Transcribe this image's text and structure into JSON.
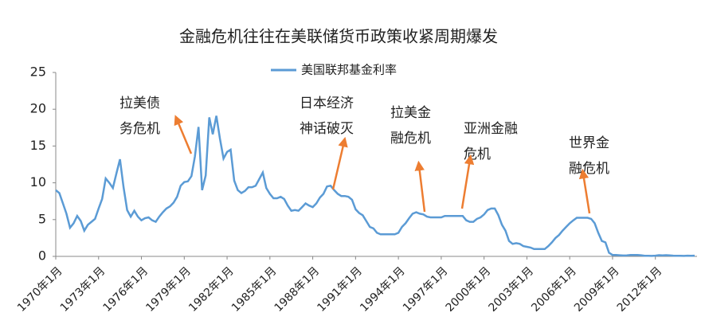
{
  "chart_data": {
    "type": "line",
    "title": "金融危机往往在美联储货币政策收紧周期爆发",
    "categories": [
      "1970年1月",
      null,
      null,
      null,
      null,
      null,
      null,
      null,
      null,
      null,
      null,
      null,
      "1973年1月",
      null,
      null,
      null,
      null,
      null,
      null,
      null,
      null,
      null,
      null,
      null,
      "1976年1月",
      null,
      null,
      null,
      null,
      null,
      null,
      null,
      null,
      null,
      null,
      null,
      "1979年1月",
      null,
      null,
      null,
      null,
      null,
      null,
      null,
      null,
      null,
      null,
      null,
      "1982年1月",
      null,
      null,
      null,
      null,
      null,
      null,
      null,
      null,
      null,
      null,
      null,
      "1985年1月",
      null,
      null,
      null,
      null,
      null,
      null,
      null,
      null,
      null,
      null,
      null,
      "1988年1月",
      null,
      null,
      null,
      null,
      null,
      null,
      null,
      null,
      null,
      null,
      null,
      "1991年1月",
      null,
      null,
      null,
      null,
      null,
      null,
      null,
      null,
      null,
      null,
      null,
      "1994年1月",
      null,
      null,
      null,
      null,
      null,
      null,
      null,
      null,
      null,
      null,
      null,
      "1997年1月",
      null,
      null,
      null,
      null,
      null,
      null,
      null,
      null,
      null,
      null,
      null,
      "2000年1月",
      null,
      null,
      null,
      null,
      null,
      null,
      null,
      null,
      null,
      null,
      null,
      "2003年1月",
      null,
      null,
      null,
      null,
      null,
      null,
      null,
      null,
      null,
      null,
      null,
      "2006年1月",
      null,
      null,
      null,
      null,
      null,
      null,
      null,
      null,
      null,
      null,
      null,
      "2009年1月",
      null,
      null,
      null,
      null,
      null,
      null,
      null,
      null,
      null,
      null,
      null,
      "2012年1月",
      null,
      null,
      null,
      null,
      null,
      null,
      null,
      null,
      null,
      null,
      null
    ],
    "series": [
      {
        "name": "美国联邦基金利率",
        "color": "#5b9bd5",
        "values": [
          9.0,
          8.6,
          7.2,
          5.8,
          3.9,
          4.5,
          5.5,
          4.8,
          3.5,
          4.3,
          4.7,
          5.1,
          6.5,
          7.8,
          10.6,
          10.0,
          9.3,
          11.3,
          13.2,
          9.4,
          6.3,
          5.4,
          6.2,
          5.4,
          4.9,
          5.2,
          5.3,
          4.9,
          4.7,
          5.4,
          6.0,
          6.5,
          6.8,
          7.3,
          8.1,
          9.6,
          10.1,
          10.2,
          10.9,
          13.6,
          17.6,
          9.0,
          11.0,
          18.9,
          16.6,
          19.1,
          16.0,
          13.3,
          14.2,
          14.5,
          10.3,
          9.0,
          8.6,
          8.9,
          9.4,
          9.4,
          9.6,
          10.5,
          11.4,
          9.3,
          8.5,
          7.9,
          7.9,
          8.1,
          7.8,
          6.9,
          6.2,
          6.3,
          6.2,
          6.7,
          7.2,
          6.9,
          6.7,
          7.2,
          8.0,
          8.5,
          9.5,
          9.6,
          9.0,
          8.5,
          8.2,
          8.2,
          8.1,
          7.7,
          6.4,
          5.9,
          5.6,
          4.8,
          4.0,
          3.8,
          3.2,
          3.0,
          3.0,
          3.0,
          3.0,
          3.0,
          3.2,
          4.0,
          4.5,
          5.2,
          5.8,
          6.0,
          5.8,
          5.7,
          5.4,
          5.3,
          5.3,
          5.3,
          5.3,
          5.5,
          5.5,
          5.5,
          5.5,
          5.5,
          5.5,
          4.9,
          4.7,
          4.7,
          5.1,
          5.3,
          5.7,
          6.3,
          6.5,
          6.5,
          5.6,
          4.3,
          3.5,
          2.1,
          1.7,
          1.8,
          1.7,
          1.4,
          1.3,
          1.2,
          1.0,
          1.0,
          1.0,
          1.0,
          1.4,
          1.9,
          2.5,
          2.9,
          3.5,
          4.0,
          4.5,
          4.9,
          5.25,
          5.25,
          5.25,
          5.25,
          5.1,
          4.5,
          3.2,
          2.1,
          1.9,
          0.5,
          0.2,
          0.2,
          0.15,
          0.12,
          0.13,
          0.2,
          0.2,
          0.19,
          0.15,
          0.09,
          0.08,
          0.07,
          0.1,
          0.16,
          0.14,
          0.16,
          0.14,
          0.1,
          0.08,
          0.09,
          0.07,
          0.1,
          0.09,
          0.1
        ]
      }
    ],
    "ylim": [
      0,
      25
    ],
    "yticks": [
      0,
      5,
      10,
      15,
      20,
      25
    ],
    "grid": false,
    "legend": "top",
    "annotations": [
      [
        "拉美债",
        "务危机"
      ],
      [
        "日本经济",
        "神话破灭"
      ],
      [
        "拉美金",
        "融危机"
      ],
      [
        "亚洲金融",
        "危机"
      ],
      [
        "世界金",
        "融危机"
      ]
    ],
    "annotation_color": "#ed7d31"
  }
}
